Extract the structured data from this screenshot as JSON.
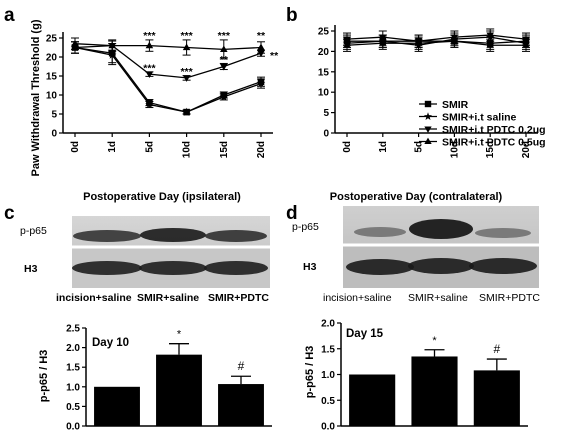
{
  "panels": {
    "a": {
      "letter": "a"
    },
    "b": {
      "letter": "b"
    },
    "c": {
      "letter": "c",
      "blot_labels": [
        "p-p65",
        "H3"
      ],
      "lanes": [
        "incision+saline",
        "SMIR+saline",
        "SMIR+PDTC"
      ]
    },
    "d": {
      "letter": "d",
      "blot_labels": [
        "p-p65",
        "H3"
      ],
      "lanes": [
        "incision+saline",
        "SMIR+saline",
        "SMIR+PDTC"
      ]
    }
  },
  "legend": {
    "items": [
      {
        "label": "SMIR",
        "marker": "square"
      },
      {
        "label": "SMIR+i.t saline",
        "marker": "star"
      },
      {
        "label": "SMIR+i.t PDTC 0.2ug",
        "marker": "triangle-down"
      },
      {
        "label": "SMIR+i.t PDTC 0.5ug",
        "marker": "triangle-up"
      }
    ]
  },
  "chart_data": [
    {
      "panel": "a",
      "type": "line",
      "xlabel": "Postoperative Day (ipsilateral)",
      "ylabel": "Paw Withdrawal Threshold (g)",
      "categories": [
        "0d",
        "1d",
        "5d",
        "10d",
        "15d",
        "20d"
      ],
      "ylim": [
        0,
        25
      ],
      "yticks": [
        "0",
        "5",
        "10",
        "15",
        "20",
        "25"
      ],
      "series": [
        {
          "name": "SMIR",
          "marker": "square",
          "values": [
            22.5,
            21,
            8,
            5.5,
            10,
            13.5
          ],
          "errors": [
            1.5,
            2.5,
            0.8,
            0.5,
            0.8,
            1.2
          ]
        },
        {
          "name": "SMIR+i.t saline",
          "marker": "star",
          "values": [
            22.5,
            20.5,
            7.5,
            5.5,
            9.5,
            13
          ],
          "errors": [
            1.5,
            2.5,
            0.8,
            0.5,
            0.8,
            1.2
          ]
        },
        {
          "name": "SMIR+i.t PDTC 0.2ug",
          "marker": "triangle-down",
          "values": [
            22.5,
            23,
            15.5,
            14.5,
            17.5,
            21
          ],
          "errors": [
            1.5,
            1.2,
            0.6,
            0.6,
            0.8,
            0.8
          ]
        },
        {
          "name": "SMIR+i.t PDTC 0.5ug",
          "marker": "triangle-up",
          "values": [
            23.5,
            23,
            23,
            22.5,
            22,
            22.5
          ],
          "errors": [
            1.5,
            1.5,
            1.5,
            2,
            2.5,
            1.5
          ]
        }
      ],
      "annotations": [
        {
          "text": "***",
          "x": "5d",
          "y": 25.5
        },
        {
          "text": "***",
          "x": "10d",
          "y": 25.5
        },
        {
          "text": "***",
          "x": "15d",
          "y": 25.5
        },
        {
          "text": "**",
          "x": "20d",
          "y": 25.5
        },
        {
          "text": "***",
          "x": "5d",
          "y": 17
        },
        {
          "text": "***",
          "x": "10d",
          "y": 16
        },
        {
          "text": "**",
          "x": "15d",
          "y": 19.2
        },
        {
          "text": "**",
          "x": "20d",
          "y": 20.2,
          "side": "right"
        }
      ]
    },
    {
      "panel": "b",
      "type": "line",
      "xlabel": "Postoperative Day (contralateral)",
      "ylabel": "",
      "categories": [
        "0d",
        "1d",
        "5d",
        "10d",
        "15d",
        "20d"
      ],
      "ylim": [
        0,
        25
      ],
      "yticks": [
        "0",
        "5",
        "10",
        "15",
        "20",
        "25"
      ],
      "series": [
        {
          "name": "SMIR",
          "marker": "square",
          "values": [
            22.5,
            22.5,
            22.5,
            22.5,
            22,
            22.5
          ],
          "errors": [
            1.5,
            1.5,
            1.5,
            1.5,
            1.5,
            1.5
          ]
        },
        {
          "name": "SMIR+i.t saline",
          "marker": "star",
          "values": [
            22,
            22.5,
            21.5,
            23,
            23.5,
            22
          ],
          "errors": [
            1.5,
            1.5,
            1.5,
            1.5,
            1.5,
            1.5
          ]
        },
        {
          "name": "SMIR+i.t PDTC 0.2ug",
          "marker": "triangle-down",
          "values": [
            23,
            23.5,
            22.5,
            23.5,
            24,
            23
          ],
          "errors": [
            1.5,
            1.5,
            1.5,
            1.5,
            1.5,
            1.5
          ]
        },
        {
          "name": "SMIR+i.t PDTC 0.5ug",
          "marker": "triangle-up",
          "values": [
            21.5,
            22,
            22,
            22.5,
            21.5,
            21.5
          ],
          "errors": [
            1.5,
            1.5,
            1.5,
            1.5,
            1.5,
            1.5
          ]
        }
      ]
    },
    {
      "panel": "c",
      "type": "bar",
      "title": "Day 10",
      "ylabel": "p-p65 / H3",
      "categories": [
        "incision+saline",
        "SMIR+saline",
        "SMIR+PDTC"
      ],
      "values": [
        1.0,
        1.82,
        1.07
      ],
      "errors": [
        0,
        0.28,
        0.2
      ],
      "marks": [
        "",
        "*",
        "#"
      ],
      "ylim": [
        0,
        2.5
      ],
      "yticks": [
        "0.0",
        "0.5",
        "1.0",
        "1.5",
        "2.0",
        "2.5"
      ]
    },
    {
      "panel": "d",
      "type": "bar",
      "title": "Day 15",
      "ylabel": "p-p65 / H3",
      "categories": [
        "incision+saline",
        "SMIR+saline",
        "SMIR+PDTC"
      ],
      "values": [
        1.0,
        1.35,
        1.08
      ],
      "errors": [
        0,
        0.13,
        0.22
      ],
      "marks": [
        "",
        "*",
        "#"
      ],
      "ylim": [
        0,
        2.0
      ],
      "yticks": [
        "0.0",
        "0.5",
        "1.0",
        "1.5",
        "2.0"
      ]
    }
  ]
}
